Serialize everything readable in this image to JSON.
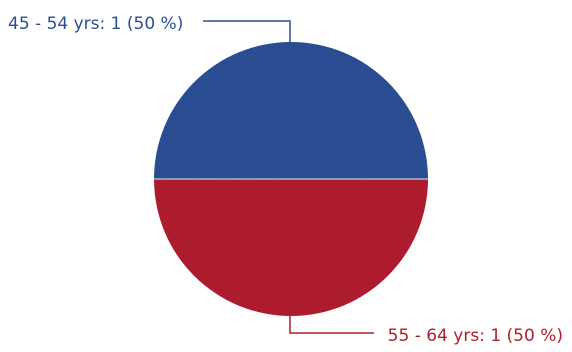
{
  "chart_data": {
    "type": "pie",
    "title": "",
    "slices": [
      {
        "label": "45 - 54 yrs",
        "value": 1,
        "percent": 50,
        "color": "#2b4f95",
        "label_text": "45 - 54 yrs: 1 (50 %)"
      },
      {
        "label": "55 - 64 yrs",
        "value": 1,
        "percent": 50,
        "color": "#b01e2e",
        "label_text": "55 - 64 yrs: 1 (50 %)"
      }
    ]
  }
}
